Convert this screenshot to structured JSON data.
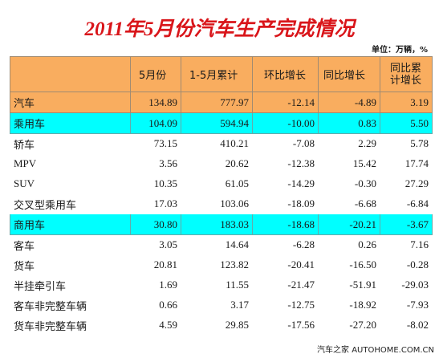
{
  "title": "2011年5月份汽车生产完成情况",
  "unit": "单位：万辆，%",
  "columns": [
    "5月份",
    "1-5月累计",
    "环比增长",
    "同比增长",
    "同比累计增长"
  ],
  "rows": [
    {
      "name": "汽车",
      "style": "orange",
      "level": 0,
      "values": [
        "134.89",
        "777.97",
        "-12.14",
        "-4.89",
        "3.19"
      ]
    },
    {
      "name": "乘用车",
      "style": "cyan",
      "level": 1,
      "values": [
        "104.09",
        "594.94",
        "-10.00",
        "0.83",
        "5.50"
      ]
    },
    {
      "name": "轿车",
      "style": "plain",
      "level": 2,
      "values": [
        "73.15",
        "410.21",
        "-7.08",
        "2.29",
        "5.78"
      ]
    },
    {
      "name": "MPV",
      "style": "plain",
      "level": 2,
      "values": [
        "3.56",
        "20.62",
        "-12.38",
        "15.42",
        "17.74"
      ]
    },
    {
      "name": "SUV",
      "style": "plain",
      "level": 2,
      "values": [
        "10.35",
        "61.05",
        "-14.29",
        "-0.30",
        "27.29"
      ]
    },
    {
      "name": "交叉型乘用车",
      "style": "plain",
      "level": 2,
      "values": [
        "17.03",
        "103.06",
        "-18.09",
        "-6.68",
        "-6.84"
      ]
    },
    {
      "name": "商用车",
      "style": "cyan",
      "level": 0,
      "values": [
        "30.80",
        "183.03",
        "-18.68",
        "-20.21",
        "-3.67"
      ]
    },
    {
      "name": "客车",
      "style": "plain",
      "level": 3,
      "values": [
        "3.05",
        "14.64",
        "-6.28",
        "0.26",
        "7.16"
      ]
    },
    {
      "name": "货车",
      "style": "plain",
      "level": 3,
      "values": [
        "20.81",
        "123.82",
        "-20.41",
        "-16.50",
        "-0.28"
      ]
    },
    {
      "name": "半挂牵引车",
      "style": "plain",
      "level": 3,
      "values": [
        "1.69",
        "11.55",
        "-21.47",
        "-51.91",
        "-29.03"
      ]
    },
    {
      "name": "客车非完整车辆",
      "style": "plain",
      "level": 3,
      "values": [
        "0.66",
        "3.17",
        "-12.75",
        "-18.92",
        "-7.93"
      ]
    },
    {
      "name": "货车非完整车辆",
      "style": "plain",
      "level": 3,
      "values": [
        "4.59",
        "29.85",
        "-17.56",
        "-27.20",
        "-8.02"
      ]
    }
  ],
  "watermark": "汽车之家 AUTOHOME.COM.CN",
  "colors": {
    "title": "#d9151a",
    "orange": "#f9ad5f",
    "cyan": "#00ffff"
  }
}
